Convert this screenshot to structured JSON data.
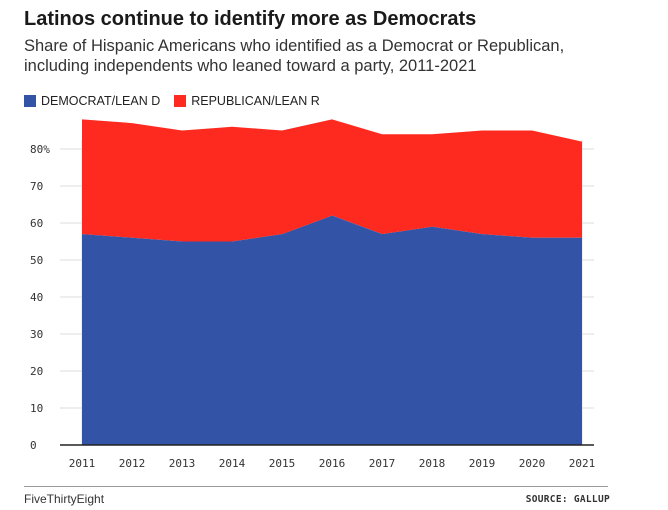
{
  "header": {
    "title": "Latinos continue to identify more as Democrats",
    "subtitle": "Share of Hispanic Americans who identified as a Democrat or Republican, including independents who leaned toward a party, 2011-2021"
  },
  "legend": {
    "democrat_label": "DEMOCRAT/LEAN D",
    "republican_label": "REPUBLICAN/LEAN R"
  },
  "colors": {
    "democrat": "#3253a6",
    "republican": "#ff2a1f"
  },
  "footer": {
    "brand": "FiveThirtyEight",
    "source": "SOURCE: GALLUP"
  },
  "chart_data": {
    "type": "area",
    "stacked": true,
    "title": "Latinos continue to identify more as Democrats",
    "x": [
      "2011",
      "2012",
      "2013",
      "2014",
      "2015",
      "2016",
      "2017",
      "2018",
      "2019",
      "2020",
      "2021"
    ],
    "series": [
      {
        "name": "DEMOCRAT/LEAN D",
        "values": [
          57,
          56,
          55,
          55,
          57,
          62,
          57,
          59,
          57,
          56,
          56
        ]
      },
      {
        "name": "REPUBLICAN/LEAN R",
        "values": [
          31,
          31,
          30,
          31,
          28,
          26,
          27,
          25,
          28,
          29,
          26
        ]
      }
    ],
    "y_ticks": [
      "0",
      "10",
      "20",
      "30",
      "40",
      "50",
      "60",
      "70",
      "80%"
    ],
    "ylim": [
      0,
      90
    ],
    "grid": true,
    "legend_position": "top-left"
  }
}
